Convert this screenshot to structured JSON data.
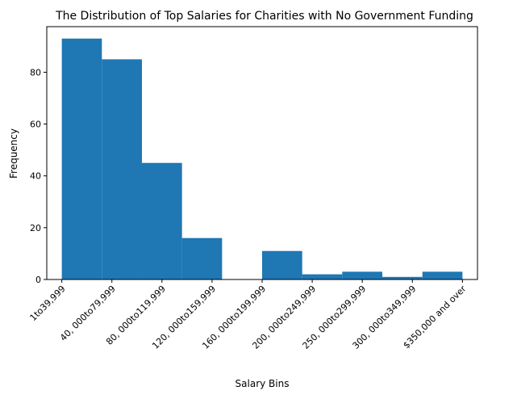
{
  "chart_data": {
    "type": "bar",
    "title": "The Distribution of Top Salaries for Charities with No Government Funding",
    "xlabel": "Salary Bins",
    "ylabel": "Frequency",
    "bar_color": "#1f77b4",
    "xlim": [
      -0.3,
      8.3
    ],
    "ylim": [
      0,
      97.6
    ],
    "y_ticks": [
      0,
      20,
      40,
      60,
      80
    ],
    "x_ticks": [
      0,
      1,
      2,
      3,
      4,
      5,
      6,
      7,
      8
    ],
    "x_tick_labels": [
      "1to39,999",
      "40, 000to79,999",
      "80, 000to119,999",
      "120, 000to159,999",
      "160, 000to199,999",
      "200, 000to249,999",
      "250, 000to299,999",
      "300, 000to349,999",
      "$350,000 and over"
    ],
    "bins": [
      {
        "start": 0.0,
        "end": 0.8,
        "value": 93
      },
      {
        "start": 0.8,
        "end": 1.6,
        "value": 85
      },
      {
        "start": 1.6,
        "end": 2.4,
        "value": 45
      },
      {
        "start": 2.4,
        "end": 3.2,
        "value": 16
      },
      {
        "start": 3.2,
        "end": 4.0,
        "value": 0
      },
      {
        "start": 4.0,
        "end": 4.8,
        "value": 11
      },
      {
        "start": 4.8,
        "end": 5.6,
        "value": 2
      },
      {
        "start": 5.6,
        "end": 6.4,
        "value": 3
      },
      {
        "start": 6.4,
        "end": 7.2,
        "value": 1
      },
      {
        "start": 7.2,
        "end": 8.0,
        "value": 3
      }
    ],
    "grid": false,
    "legend": "none"
  }
}
